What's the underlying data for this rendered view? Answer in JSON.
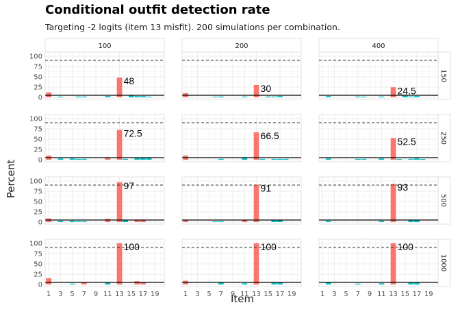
{
  "title": "Conditional outfit detection rate",
  "subtitle": "Targeting -2 logits (item 13 misfit). 200 simulations per combination.",
  "chart_data": {
    "type": "bar",
    "title": "Conditional outfit detection rate",
    "subtitle": "Targeting -2 logits (item 13 misfit). 200 simulations per combination.",
    "xlabel": "Item",
    "ylabel": "Percent",
    "x_ticks": [
      1,
      3,
      5,
      7,
      9,
      11,
      13,
      15,
      17,
      19
    ],
    "y_ticks": [
      0,
      25,
      50,
      75,
      100
    ],
    "ylim": [
      -5,
      110
    ],
    "items": [
      1,
      2,
      3,
      4,
      5,
      6,
      7,
      8,
      9,
      10,
      11,
      12,
      13,
      14,
      15,
      16,
      17,
      18,
      19,
      20
    ],
    "reference_lines": {
      "solid": 5,
      "dashed": 90
    },
    "colors": {
      "above_5": "#F8766D",
      "below_5": "#00BFC4",
      "panel_bg": "#ffffff",
      "grid": "#ebebeb",
      "strip_text": "#1a1a1a"
    },
    "col_facets": [
      "100",
      "200",
      "400"
    ],
    "row_facets": [
      "150",
      "250",
      "500",
      "1000"
    ],
    "panels": [
      {
        "row": "150",
        "col": "100",
        "label": "48",
        "values": [
          12,
          0,
          1,
          0,
          0,
          2,
          2,
          0,
          0,
          0,
          3,
          0,
          48,
          0,
          4,
          3,
          3,
          1,
          0,
          0
        ]
      },
      {
        "row": "150",
        "col": "200",
        "label": "30",
        "values": [
          10,
          0,
          0,
          0,
          0,
          1,
          2,
          0,
          0,
          0,
          2,
          0,
          30,
          0,
          2,
          2,
          3,
          0,
          0,
          0
        ]
      },
      {
        "row": "150",
        "col": "400",
        "label": "24.5",
        "values": [
          0,
          3,
          0,
          0,
          0,
          0,
          2,
          1,
          0,
          0,
          2,
          0,
          24.5,
          0,
          4,
          2,
          3,
          0,
          0,
          0
        ]
      },
      {
        "row": "250",
        "col": "100",
        "label": "72.5",
        "values": [
          10,
          0,
          3,
          0,
          3,
          2,
          2,
          0,
          0,
          0,
          6,
          0,
          72.5,
          2,
          0,
          4,
          4,
          4,
          0,
          0
        ]
      },
      {
        "row": "250",
        "col": "200",
        "label": "66.5",
        "values": [
          10,
          0,
          0,
          0,
          0,
          0,
          2,
          0,
          0,
          0,
          5,
          0,
          66.5,
          2,
          0,
          2,
          2,
          2,
          0,
          0
        ]
      },
      {
        "row": "250",
        "col": "400",
        "label": "52.5",
        "values": [
          0,
          3,
          0,
          0,
          0,
          0,
          2,
          2,
          0,
          0,
          3,
          0,
          52.5,
          1,
          0,
          2,
          3,
          1,
          0,
          0
        ]
      },
      {
        "row": "500",
        "col": "100",
        "label": "97",
        "values": [
          9,
          0,
          3,
          0,
          3,
          2,
          2,
          0,
          0,
          0,
          8,
          0,
          97,
          4,
          0,
          6,
          6,
          0,
          0,
          0
        ]
      },
      {
        "row": "500",
        "col": "200",
        "label": "91",
        "values": [
          6,
          0,
          0,
          0,
          0,
          2,
          2,
          0,
          0,
          0,
          6,
          0,
          91,
          0,
          0,
          4,
          4,
          0,
          0,
          0
        ]
      },
      {
        "row": "500",
        "col": "400",
        "label": "93",
        "values": [
          0,
          3,
          0,
          0,
          0,
          0,
          0,
          0,
          0,
          0,
          3,
          0,
          93,
          0,
          0,
          4,
          4,
          0,
          0,
          0
        ]
      },
      {
        "row": "1000",
        "col": "100",
        "label": "100",
        "values": [
          15,
          0,
          0,
          0,
          2,
          0,
          6,
          0,
          0,
          0,
          4,
          0,
          100,
          0,
          0,
          8,
          6,
          0,
          0,
          0
        ]
      },
      {
        "row": "1000",
        "col": "200",
        "label": "100",
        "values": [
          9,
          0,
          0,
          0,
          0,
          0,
          4,
          0,
          0,
          0,
          3,
          0,
          100,
          0,
          0,
          4,
          4,
          0,
          0,
          0
        ]
      },
      {
        "row": "1000",
        "col": "400",
        "label": "100",
        "values": [
          0,
          4,
          0,
          0,
          0,
          0,
          2,
          0,
          0,
          0,
          3,
          0,
          100,
          0,
          0,
          4,
          4,
          0,
          0,
          0
        ]
      }
    ]
  }
}
